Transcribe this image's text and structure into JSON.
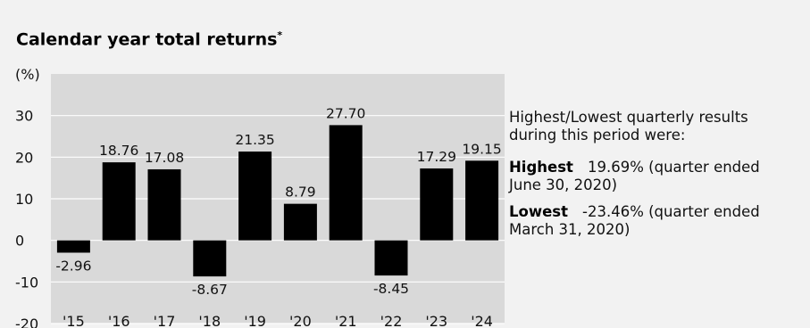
{
  "title": "Calendar year total returns",
  "title_footnote": "*",
  "chart_data": {
    "type": "bar",
    "unit_label": "(%)",
    "categories": [
      "'15",
      "'16",
      "'17",
      "'18",
      "'19",
      "'20",
      "'21",
      "'22",
      "'23",
      "'24"
    ],
    "values": [
      -2.96,
      18.76,
      17.08,
      -8.67,
      21.35,
      8.79,
      27.7,
      -8.45,
      17.29,
      19.15
    ],
    "data_labels": [
      "-2.96",
      "18.76",
      "17.08",
      "-8.67",
      "21.35",
      "8.79",
      "27.70",
      "-8.45",
      "17.29",
      "19.15"
    ],
    "ylim": [
      -20,
      40
    ],
    "yticks": [
      -20,
      -10,
      0,
      10,
      20,
      30
    ],
    "grid": true,
    "bar_color": "#000000",
    "plot_background": "#d9d9d9"
  },
  "side_note": {
    "intro": "Highest/Lowest quarterly results during this period were:",
    "highest_label": "Highest",
    "highest_text": "19.69% (quarter ended June 30, 2020)",
    "lowest_label": "Lowest",
    "lowest_text": "-23.46% (quarter ended March 31, 2020)"
  }
}
